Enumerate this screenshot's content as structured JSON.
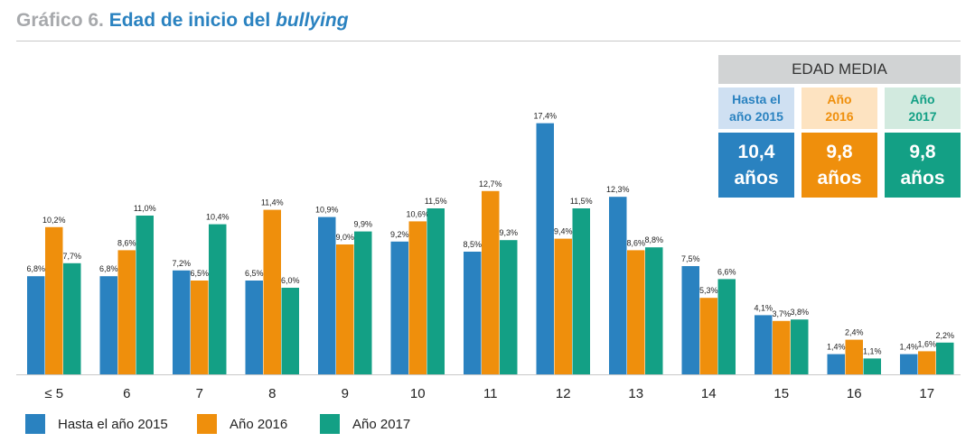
{
  "header": {
    "prefix": "Gráfico 6.",
    "title_main": "Edad de inicio del",
    "title_emph": "bullying"
  },
  "colors": {
    "series_2015": "#2a82c0",
    "series_2016": "#ef8f0c",
    "series_2017": "#13a085"
  },
  "chart_data": {
    "type": "bar",
    "categories": [
      "≤ 5",
      "6",
      "7",
      "8",
      "9",
      "10",
      "11",
      "12",
      "13",
      "14",
      "15",
      "16",
      "17"
    ],
    "series": [
      {
        "name": "Hasta el año 2015",
        "values": [
          6.8,
          6.8,
          7.2,
          6.5,
          10.9,
          9.2,
          8.5,
          17.4,
          12.3,
          7.5,
          4.1,
          1.4,
          1.4
        ],
        "labels": [
          "6,8%",
          "6,8%",
          "7,2%",
          "6,5%",
          "10,9%",
          "9,2%",
          "8,5%",
          "17,4%",
          "12,3%",
          "7,5%",
          "4,1%",
          "1,4%",
          "1,4%"
        ]
      },
      {
        "name": "Año 2016",
        "values": [
          10.2,
          8.6,
          6.5,
          11.4,
          9.0,
          10.6,
          12.7,
          9.4,
          8.6,
          5.3,
          3.7,
          2.4,
          1.6
        ],
        "labels": [
          "10,2%",
          "8,6%",
          "6,5%",
          "11,4%",
          "9,0%",
          "10,6%",
          "12,7%",
          "9,4%",
          "8,6%",
          "5,3%",
          "3,7%",
          "2,4%",
          "1,6%"
        ]
      },
      {
        "name": "Año 2017",
        "values": [
          7.7,
          11.0,
          10.4,
          6.0,
          9.9,
          11.5,
          9.3,
          11.5,
          8.8,
          6.6,
          3.8,
          1.1,
          2.2
        ],
        "labels": [
          "7,7%",
          "11,0%",
          "10,4%",
          "6,0%",
          "9,9%",
          "11,5%",
          "9,3%",
          "11,5%",
          "8,8%",
          "6,6%",
          "3,8%",
          "1,1%",
          "2,2%"
        ]
      }
    ],
    "legend": "bottom",
    "grid": false
  },
  "average_panel": {
    "heading": "EDAD MEDIA",
    "items": [
      {
        "label_line1": "Hasta el",
        "label_line2": "año 2015",
        "value": "10,4",
        "unit": "años",
        "label_bg": "#cfe0f2",
        "label_color": "#2a82c0",
        "value_bg": "#2a82c0"
      },
      {
        "label_line1": "Año",
        "label_line2": "2016",
        "value": "9,8",
        "unit": "años",
        "label_bg": "#fde3c1",
        "label_color": "#ef8f0c",
        "value_bg": "#ef8f0c"
      },
      {
        "label_line1": "Año",
        "label_line2": "2017",
        "value": "9,8",
        "unit": "años",
        "label_bg": "#d2eadf",
        "label_color": "#13a085",
        "value_bg": "#13a085"
      }
    ]
  }
}
